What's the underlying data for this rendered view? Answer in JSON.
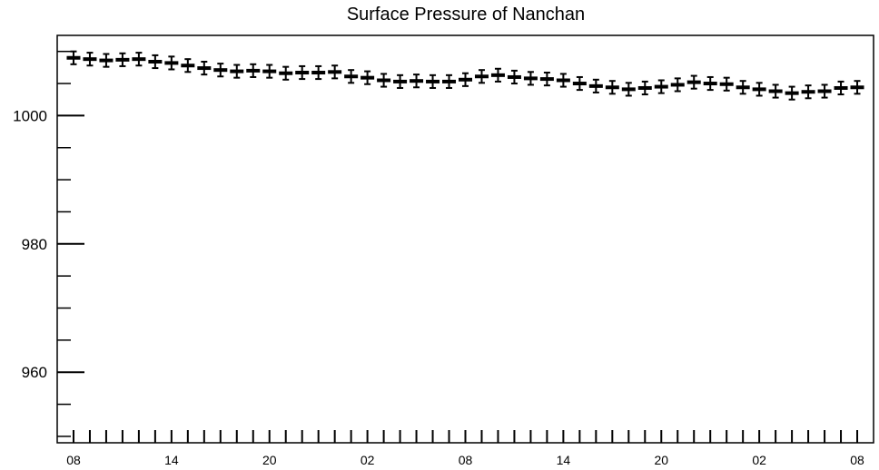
{
  "chart_data": {
    "type": "scatter",
    "title": "Surface Pressure of Nanchan",
    "xlabel": "",
    "ylabel": "",
    "ylim": [
      949,
      1012.5
    ],
    "y_ticks": [
      960,
      980,
      1000
    ],
    "x_tick_labels": [
      "08",
      "14",
      "20",
      "02",
      "08",
      "14",
      "20",
      "02",
      "08"
    ],
    "x_tick_hour_offsets": [
      0,
      6,
      12,
      18,
      24,
      30,
      36,
      42,
      48
    ],
    "xlim_hours": [
      -1,
      49
    ],
    "error_bar_half_width": 1,
    "grid": false,
    "legend": "none",
    "colors": {
      "marker": "#000000",
      "axes": "#000000",
      "background": "#ffffff"
    },
    "series": [
      {
        "hours": [
          0,
          1,
          2,
          3,
          4,
          5,
          6,
          7,
          8,
          9,
          10,
          11,
          12,
          13,
          14,
          15,
          16,
          17,
          18,
          19,
          20,
          21,
          22,
          23,
          24,
          25,
          26,
          27,
          28,
          29,
          30,
          31,
          32,
          33,
          34,
          35,
          36,
          37,
          38,
          39,
          40,
          41,
          42,
          43,
          44,
          45,
          46,
          47,
          48
        ],
        "values": [
          1009.0,
          1008.8,
          1008.6,
          1008.7,
          1008.8,
          1008.4,
          1008.2,
          1007.8,
          1007.4,
          1007.1,
          1006.9,
          1007.0,
          1006.9,
          1006.6,
          1006.7,
          1006.7,
          1006.8,
          1006.1,
          1005.9,
          1005.5,
          1005.3,
          1005.4,
          1005.3,
          1005.3,
          1005.6,
          1006.1,
          1006.3,
          1006.0,
          1005.8,
          1005.7,
          1005.5,
          1005.0,
          1004.6,
          1004.4,
          1004.1,
          1004.3,
          1004.5,
          1004.8,
          1005.2,
          1005.0,
          1004.9,
          1004.4,
          1004.1,
          1003.8,
          1003.5,
          1003.7,
          1003.8,
          1004.3,
          1004.4
        ]
      }
    ]
  }
}
